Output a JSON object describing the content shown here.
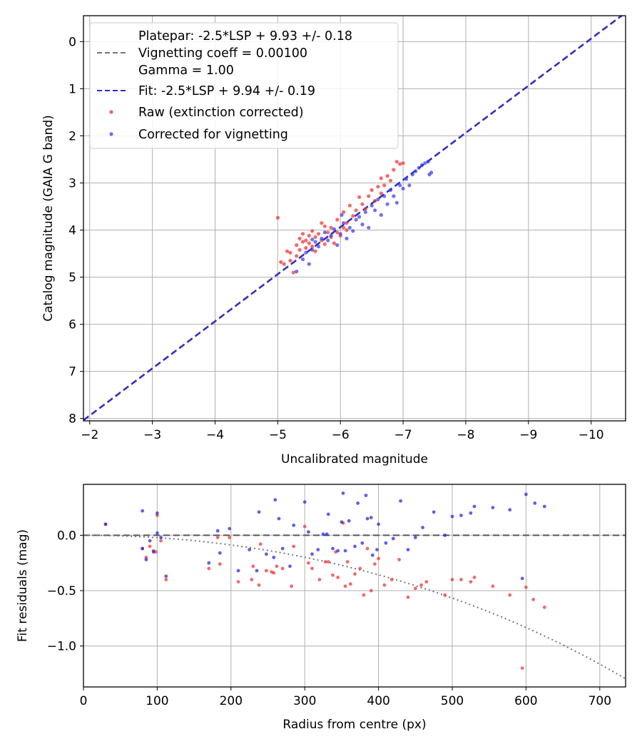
{
  "chart_data": [
    {
      "id": "top",
      "type": "scatter",
      "xlabel": "Uncalibrated magnitude",
      "ylabel": "Catalog magnitude (GAIA G band)",
      "xlim": [
        -1.9,
        -10.55
      ],
      "ylim": [
        8.05,
        -0.55
      ],
      "xticks": [
        -2,
        -3,
        -4,
        -5,
        -6,
        -7,
        -8,
        -9,
        -10
      ],
      "xtick_labels": [
        "−2",
        "−3",
        "−4",
        "−5",
        "−6",
        "−7",
        "−8",
        "−9",
        "−10"
      ],
      "yticks": [
        0,
        1,
        2,
        3,
        4,
        5,
        6,
        7,
        8
      ],
      "ytick_labels": [
        "0",
        "1",
        "2",
        "3",
        "4",
        "5",
        "6",
        "7",
        "8"
      ],
      "grid": true,
      "legend_position": "top-left",
      "legend": [
        {
          "label": "Platepar: -2.5*LSP + 9.93 +/- 0.18",
          "kind": "text"
        },
        {
          "label": "Vignetting coeff = 0.00100",
          "kind": "dashed-line",
          "color": "#777777"
        },
        {
          "label": "Gamma = 1.00",
          "kind": "text"
        },
        {
          "label": "Fit: -2.5*LSP + 9.94 +/- 0.19",
          "kind": "dashed-line",
          "color": "#2a2ad0"
        },
        {
          "label": "Raw (extinction corrected)",
          "kind": "marker",
          "color": "#ee3030"
        },
        {
          "label": "Corrected for vignetting",
          "kind": "marker",
          "color": "#3a3aee"
        }
      ],
      "lines": [
        {
          "name": "Platepar",
          "slope": -1,
          "intercept": 9.93,
          "color": "#777777",
          "style": "dashed"
        },
        {
          "name": "Fit",
          "slope": -1,
          "intercept": 9.94,
          "color": "#2a2ad0",
          "style": "dashed"
        }
      ],
      "series": [
        {
          "name": "Raw (extinction corrected)",
          "color": "#ee3030",
          "points": [
            [
              -5.0,
              3.74
            ],
            [
              -5.05,
              4.68
            ],
            [
              -5.1,
              4.72
            ],
            [
              -5.15,
              4.45
            ],
            [
              -5.2,
              4.48
            ],
            [
              -5.25,
              4.9
            ],
            [
              -5.2,
              4.65
            ],
            [
              -5.3,
              4.32
            ],
            [
              -5.3,
              4.55
            ],
            [
              -5.35,
              4.18
            ],
            [
              -5.35,
              4.42
            ],
            [
              -5.4,
              4.08
            ],
            [
              -5.4,
              4.25
            ],
            [
              -5.45,
              4.22
            ],
            [
              -5.45,
              4.38
            ],
            [
              -5.5,
              4.12
            ],
            [
              -5.5,
              4.28
            ],
            [
              -5.55,
              4.02
            ],
            [
              -5.55,
              4.35
            ],
            [
              -5.6,
              4.15
            ],
            [
              -5.6,
              4.45
            ],
            [
              -5.65,
              4.08
            ],
            [
              -5.7,
              3.85
            ],
            [
              -5.7,
              4.22
            ],
            [
              -5.75,
              3.92
            ],
            [
              -5.75,
              4.3
            ],
            [
              -5.8,
              4.05
            ],
            [
              -5.85,
              3.95
            ],
            [
              -5.85,
              4.15
            ],
            [
              -5.9,
              4.28
            ],
            [
              -5.95,
              3.78
            ],
            [
              -5.95,
              4.05
            ],
            [
              -6.0,
              4.12
            ],
            [
              -6.05,
              3.95
            ],
            [
              -6.05,
              3.62
            ],
            [
              -6.1,
              3.85
            ],
            [
              -6.1,
              4.0
            ],
            [
              -6.15,
              3.48
            ],
            [
              -6.2,
              3.7
            ],
            [
              -6.25,
              3.58
            ],
            [
              -6.3,
              3.3
            ],
            [
              -6.35,
              3.45
            ],
            [
              -6.4,
              3.55
            ],
            [
              -6.45,
              3.28
            ],
            [
              -6.5,
              3.15
            ],
            [
              -6.55,
              3.38
            ],
            [
              -6.6,
              3.08
            ],
            [
              -6.65,
              3.22
            ],
            [
              -6.65,
              2.9
            ],
            [
              -6.7,
              3.05
            ],
            [
              -6.75,
              2.85
            ],
            [
              -6.8,
              2.95
            ],
            [
              -6.85,
              2.72
            ],
            [
              -6.9,
              2.55
            ],
            [
              -6.95,
              2.6
            ],
            [
              -7.0,
              2.58
            ]
          ]
        },
        {
          "name": "Corrected for vignetting",
          "color": "#3a3aee",
          "points": [
            [
              -5.3,
              4.88
            ],
            [
              -5.4,
              4.62
            ],
            [
              -5.45,
              4.48
            ],
            [
              -5.5,
              4.72
            ],
            [
              -5.55,
              4.42
            ],
            [
              -5.6,
              4.25
            ],
            [
              -5.65,
              4.35
            ],
            [
              -5.7,
              4.18
            ],
            [
              -5.75,
              4.05
            ],
            [
              -5.8,
              4.22
            ],
            [
              -5.85,
              4.12
            ],
            [
              -5.9,
              3.98
            ],
            [
              -5.95,
              4.32
            ],
            [
              -6.0,
              4.08
            ],
            [
              -6.05,
              3.85
            ],
            [
              -6.1,
              4.18
            ],
            [
              -6.15,
              3.95
            ],
            [
              -6.2,
              4.02
            ],
            [
              -6.25,
              3.78
            ],
            [
              -6.3,
              3.72
            ],
            [
              -6.35,
              3.88
            ],
            [
              -6.4,
              3.62
            ],
            [
              -6.45,
              3.95
            ],
            [
              -6.5,
              3.48
            ],
            [
              -6.55,
              3.58
            ],
            [
              -6.6,
              3.35
            ],
            [
              -6.65,
              3.68
            ],
            [
              -6.7,
              3.28
            ],
            [
              -6.75,
              3.45
            ],
            [
              -6.8,
              3.15
            ],
            [
              -6.85,
              3.28
            ],
            [
              -6.9,
              3.42
            ],
            [
              -6.95,
              3.05
            ],
            [
              -7.0,
              3.12
            ],
            [
              -7.05,
              2.92
            ],
            [
              -7.1,
              3.05
            ],
            [
              -7.15,
              2.82
            ],
            [
              -7.2,
              2.75
            ],
            [
              -7.25,
              2.68
            ],
            [
              -7.3,
              2.62
            ],
            [
              -7.35,
              2.58
            ],
            [
              -7.4,
              2.55
            ],
            [
              -7.45,
              2.78
            ],
            [
              -7.42,
              2.82
            ],
            [
              -5.55,
              4.2
            ],
            [
              -6.02,
              3.68
            ]
          ]
        }
      ]
    },
    {
      "id": "bottom",
      "type": "scatter",
      "xlabel": "Radius from centre (px)",
      "ylabel": "Fit residuals (mag)",
      "xlim": [
        0,
        735
      ],
      "ylim": [
        -1.37,
        0.46
      ],
      "xticks": [
        0,
        100,
        200,
        300,
        400,
        500,
        600,
        700
      ],
      "xtick_labels": [
        "0",
        "100",
        "200",
        "300",
        "400",
        "500",
        "600",
        "700"
      ],
      "yticks": [
        0.0,
        -0.5,
        -1.0
      ],
      "ytick_labels": [
        "0.0",
        "−0.5",
        "−1.0"
      ],
      "grid": true,
      "lines": [
        {
          "name": "zero",
          "type": "hline",
          "y": 0,
          "color": "#555555",
          "style": "dashed"
        },
        {
          "name": "vignetting",
          "type": "curve",
          "coeff": 0.001,
          "color": "#777777",
          "style": "dotted"
        }
      ],
      "series": [
        {
          "name": "Raw (extinction corrected)",
          "color": "#ee3030",
          "points": [
            [
              30,
              0.1
            ],
            [
              80,
              -0.12
            ],
            [
              85,
              -0.2
            ],
            [
              90,
              -0.1
            ],
            [
              95,
              -0.14
            ],
            [
              98,
              -0.15
            ],
            [
              100,
              0.18
            ],
            [
              105,
              -0.05
            ],
            [
              112,
              -0.4
            ],
            [
              170,
              -0.3
            ],
            [
              182,
              -0.02
            ],
            [
              185,
              -0.26
            ],
            [
              198,
              -0.02
            ],
            [
              210,
              -0.42
            ],
            [
              228,
              -0.4
            ],
            [
              230,
              -0.28
            ],
            [
              238,
              -0.45
            ],
            [
              240,
              -0.08
            ],
            [
              248,
              -0.32
            ],
            [
              255,
              -0.33
            ],
            [
              258,
              -0.34
            ],
            [
              262,
              -0.28
            ],
            [
              270,
              -0.3
            ],
            [
              282,
              -0.46
            ],
            [
              285,
              -0.1
            ],
            [
              300,
              0.08
            ],
            [
              305,
              -0.25
            ],
            [
              310,
              -0.3
            ],
            [
              320,
              -0.4
            ],
            [
              328,
              -0.24
            ],
            [
              332,
              -0.24
            ],
            [
              338,
              -0.36
            ],
            [
              342,
              -0.15
            ],
            [
              345,
              -0.38
            ],
            [
              352,
              0.11
            ],
            [
              355,
              -0.46
            ],
            [
              358,
              -0.24
            ],
            [
              362,
              -0.44
            ],
            [
              368,
              -0.35
            ],
            [
              375,
              -0.3
            ],
            [
              380,
              -0.54
            ],
            [
              385,
              -0.12
            ],
            [
              390,
              -0.5
            ],
            [
              395,
              -0.26
            ],
            [
              400,
              -0.21
            ],
            [
              408,
              -0.45
            ],
            [
              418,
              -0.4
            ],
            [
              428,
              -0.22
            ],
            [
              440,
              -0.56
            ],
            [
              450,
              -0.48
            ],
            [
              458,
              -0.45
            ],
            [
              465,
              -0.42
            ],
            [
              490,
              -0.54
            ],
            [
              500,
              -0.4
            ],
            [
              512,
              -0.4
            ],
            [
              525,
              -0.42
            ],
            [
              530,
              -0.38
            ],
            [
              555,
              -0.46
            ],
            [
              578,
              -0.54
            ],
            [
              595,
              -1.2
            ],
            [
              600,
              -0.47
            ],
            [
              610,
              -0.58
            ],
            [
              625,
              -0.65
            ]
          ]
        },
        {
          "name": "Corrected for vignetting",
          "color": "#2222e0",
          "points": [
            [
              30,
              0.1
            ],
            [
              80,
              0.22
            ],
            [
              80,
              -0.12
            ],
            [
              85,
              -0.22
            ],
            [
              90,
              -0.05
            ],
            [
              95,
              -0.15
            ],
            [
              100,
              0.02
            ],
            [
              100,
              0.2
            ],
            [
              105,
              -0.02
            ],
            [
              112,
              -0.37
            ],
            [
              170,
              -0.25
            ],
            [
              182,
              0.04
            ],
            [
              185,
              -0.16
            ],
            [
              198,
              0.06
            ],
            [
              210,
              -0.32
            ],
            [
              225,
              -0.13
            ],
            [
              235,
              -0.32
            ],
            [
              238,
              0.21
            ],
            [
              248,
              -0.17
            ],
            [
              258,
              -0.2
            ],
            [
              260,
              0.32
            ],
            [
              265,
              0.15
            ],
            [
              270,
              -0.12
            ],
            [
              280,
              -0.28
            ],
            [
              285,
              0.09
            ],
            [
              300,
              0.3
            ],
            [
              305,
              0.03
            ],
            [
              310,
              -0.17
            ],
            [
              318,
              -0.13
            ],
            [
              325,
              0.01
            ],
            [
              330,
              0.01
            ],
            [
              332,
              0.19
            ],
            [
              338,
              -0.12
            ],
            [
              345,
              -0.14
            ],
            [
              350,
              0.12
            ],
            [
              352,
              0.38
            ],
            [
              355,
              -0.14
            ],
            [
              360,
              0.13
            ],
            [
              368,
              -0.1
            ],
            [
              372,
              0.29
            ],
            [
              378,
              -0.07
            ],
            [
              383,
              0.36
            ],
            [
              385,
              0.15
            ],
            [
              390,
              0.16
            ],
            [
              392,
              -0.18
            ],
            [
              398,
              -0.13
            ],
            [
              400,
              0.1
            ],
            [
              410,
              -0.07
            ],
            [
              420,
              -0.03
            ],
            [
              430,
              0.31
            ],
            [
              440,
              -0.13
            ],
            [
              450,
              -0.02
            ],
            [
              460,
              0.07
            ],
            [
              475,
              0.21
            ],
            [
              490,
              0.0
            ],
            [
              500,
              0.17
            ],
            [
              512,
              0.18
            ],
            [
              525,
              0.2
            ],
            [
              530,
              0.26
            ],
            [
              555,
              0.25
            ],
            [
              578,
              0.23
            ],
            [
              595,
              -0.39
            ],
            [
              600,
              0.37
            ],
            [
              612,
              0.29
            ],
            [
              625,
              0.26
            ]
          ]
        }
      ]
    }
  ]
}
